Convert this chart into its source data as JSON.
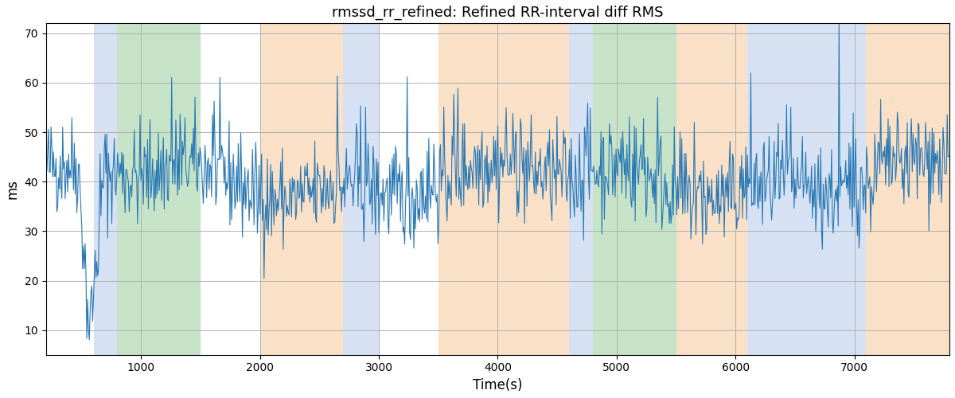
{
  "title": "rmssd_rr_refined: Refined RR-interval diff RMS",
  "xlabel": "Time(s)",
  "ylabel": "ms",
  "line_color": "#2878b5",
  "line_width": 0.8,
  "xlim": [
    200,
    7800
  ],
  "ylim": [
    5,
    72
  ],
  "yticks": [
    10,
    20,
    30,
    40,
    50,
    60,
    70
  ],
  "background_color": "#ffffff",
  "grid_color": "#b0b0b0",
  "seed": 42,
  "bands": [
    {
      "xmin": 600,
      "xmax": 800,
      "color": "#aec6e8",
      "alpha": 0.5
    },
    {
      "xmin": 800,
      "xmax": 1500,
      "color": "#90c990",
      "alpha": 0.5
    },
    {
      "xmin": 2000,
      "xmax": 2700,
      "color": "#f5c897",
      "alpha": 0.55
    },
    {
      "xmin": 2700,
      "xmax": 3000,
      "color": "#aec6e8",
      "alpha": 0.5
    },
    {
      "xmin": 3500,
      "xmax": 4600,
      "color": "#f5c897",
      "alpha": 0.55
    },
    {
      "xmin": 4600,
      "xmax": 4800,
      "color": "#aec6e8",
      "alpha": 0.5
    },
    {
      "xmin": 4800,
      "xmax": 5500,
      "color": "#90c990",
      "alpha": 0.5
    },
    {
      "xmin": 5500,
      "xmax": 6100,
      "color": "#f5c897",
      "alpha": 0.55
    },
    {
      "xmin": 6100,
      "xmax": 7100,
      "color": "#aec6e8",
      "alpha": 0.5
    },
    {
      "xmin": 7100,
      "xmax": 7800,
      "color": "#f5c897",
      "alpha": 0.55
    }
  ],
  "figsize": [
    12.0,
    5.0
  ],
  "dpi": 100
}
